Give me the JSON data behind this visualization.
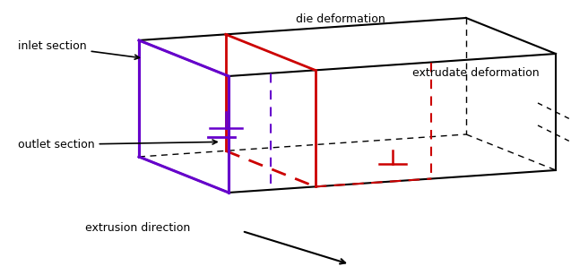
{
  "colors": {
    "box_edge": "#000000",
    "purple": "#6600cc",
    "red": "#cc0000",
    "arrow": "#000000"
  },
  "labels": {
    "inlet_section": "inlet section",
    "outlet_section": "outlet section",
    "die_deformation": "die deformation",
    "extrudate_deformation": "extrudate deformation",
    "extrusion_direction": "extrusion direction"
  },
  "fontsize": 9
}
